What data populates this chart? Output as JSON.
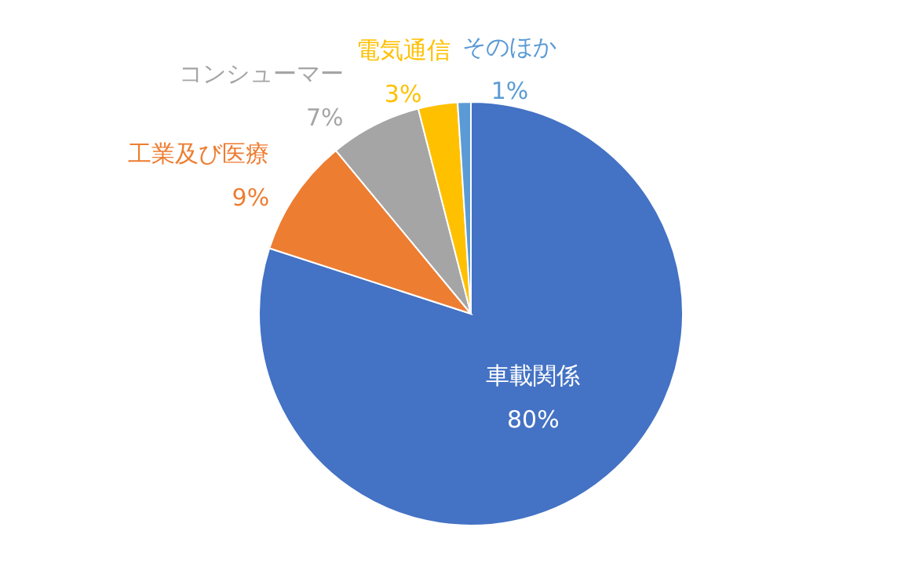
{
  "chart_data": {
    "type": "pie",
    "categories": [
      "車載関係",
      "工業及び医療",
      "コンシューマー",
      "電気通信",
      "そのほか"
    ],
    "values": [
      80,
      9,
      7,
      3,
      1
    ],
    "value_labels": [
      "80%",
      "9%",
      "7%",
      "3%",
      "1%"
    ],
    "colors": [
      "#4472c4",
      "#ed7d31",
      "#a5a5a5",
      "#ffc000",
      "#5b9bd5"
    ]
  }
}
